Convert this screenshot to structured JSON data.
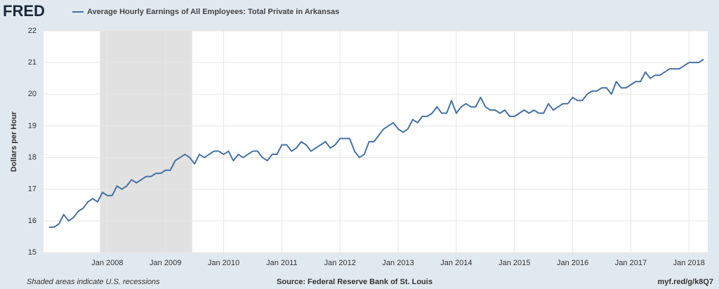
{
  "chart_data": {
    "type": "line",
    "logo": "FRED",
    "title": "Average Hourly Earnings of All Employees: Total Private in Arkansas",
    "y_label": "Dollars per Hour",
    "footer_left": "Shaded areas indicate U.S. recessions",
    "footer_center": "Source: Federal Reserve Bank of St. Louis",
    "footer_right": "myf.red/g/k8Q7",
    "x": [
      "2007-01",
      "2007-02",
      "2007-03",
      "2007-04",
      "2007-05",
      "2007-06",
      "2007-07",
      "2007-08",
      "2007-09",
      "2007-10",
      "2007-11",
      "2007-12",
      "2008-01",
      "2008-02",
      "2008-03",
      "2008-04",
      "2008-05",
      "2008-06",
      "2008-07",
      "2008-08",
      "2008-09",
      "2008-10",
      "2008-11",
      "2008-12",
      "2009-01",
      "2009-02",
      "2009-03",
      "2009-04",
      "2009-05",
      "2009-06",
      "2009-07",
      "2009-08",
      "2009-09",
      "2009-10",
      "2009-11",
      "2009-12",
      "2010-01",
      "2010-02",
      "2010-03",
      "2010-04",
      "2010-05",
      "2010-06",
      "2010-07",
      "2010-08",
      "2010-09",
      "2010-10",
      "2010-11",
      "2010-12",
      "2011-01",
      "2011-02",
      "2011-03",
      "2011-04",
      "2011-05",
      "2011-06",
      "2011-07",
      "2011-08",
      "2011-09",
      "2011-10",
      "2011-11",
      "2011-12",
      "2012-01",
      "2012-02",
      "2012-03",
      "2012-04",
      "2012-05",
      "2012-06",
      "2012-07",
      "2012-08",
      "2012-09",
      "2012-10",
      "2012-11",
      "2012-12",
      "2013-01",
      "2013-02",
      "2013-03",
      "2013-04",
      "2013-05",
      "2013-06",
      "2013-07",
      "2013-08",
      "2013-09",
      "2013-10",
      "2013-11",
      "2013-12",
      "2014-01",
      "2014-02",
      "2014-03",
      "2014-04",
      "2014-05",
      "2014-06",
      "2014-07",
      "2014-08",
      "2014-09",
      "2014-10",
      "2014-11",
      "2014-12",
      "2015-01",
      "2015-02",
      "2015-03",
      "2015-04",
      "2015-05",
      "2015-06",
      "2015-07",
      "2015-08",
      "2015-09",
      "2015-10",
      "2015-11",
      "2015-12",
      "2016-01",
      "2016-02",
      "2016-03",
      "2016-04",
      "2016-05",
      "2016-06",
      "2016-07",
      "2016-08",
      "2016-09",
      "2016-10",
      "2016-11",
      "2016-12",
      "2017-01",
      "2017-02",
      "2017-03",
      "2017-04",
      "2017-05",
      "2017-06",
      "2017-07",
      "2017-08",
      "2017-09",
      "2017-10",
      "2017-11",
      "2017-12",
      "2018-01",
      "2018-02",
      "2018-03",
      "2018-04"
    ],
    "series": [
      {
        "name": "Average Hourly Earnings of All Employees: Total Private in Arkansas",
        "color": "#4572a7",
        "values": [
          15.8,
          15.8,
          15.9,
          16.2,
          16.0,
          16.1,
          16.3,
          16.4,
          16.6,
          16.7,
          16.6,
          16.9,
          16.8,
          16.8,
          17.1,
          17.0,
          17.1,
          17.3,
          17.2,
          17.3,
          17.4,
          17.4,
          17.5,
          17.5,
          17.6,
          17.6,
          17.9,
          18.0,
          18.1,
          18.0,
          17.8,
          18.1,
          18.0,
          18.1,
          18.2,
          18.2,
          18.1,
          18.2,
          17.9,
          18.1,
          18.0,
          18.1,
          18.2,
          18.2,
          18.0,
          17.9,
          18.1,
          18.1,
          18.4,
          18.4,
          18.2,
          18.3,
          18.5,
          18.4,
          18.2,
          18.3,
          18.4,
          18.5,
          18.3,
          18.4,
          18.6,
          18.6,
          18.6,
          18.2,
          18.0,
          18.1,
          18.5,
          18.5,
          18.7,
          18.9,
          19.0,
          19.1,
          18.9,
          18.8,
          18.9,
          19.2,
          19.1,
          19.3,
          19.3,
          19.4,
          19.6,
          19.4,
          19.4,
          19.8,
          19.4,
          19.6,
          19.7,
          19.6,
          19.6,
          19.9,
          19.6,
          19.5,
          19.5,
          19.4,
          19.5,
          19.3,
          19.3,
          19.4,
          19.5,
          19.4,
          19.5,
          19.4,
          19.4,
          19.7,
          19.5,
          19.6,
          19.7,
          19.7,
          19.9,
          19.8,
          19.8,
          20.0,
          20.1,
          20.1,
          20.2,
          20.2,
          20.0,
          20.4,
          20.2,
          20.2,
          20.3,
          20.4,
          20.4,
          20.7,
          20.5,
          20.6,
          20.6,
          20.7,
          20.8,
          20.8,
          20.8,
          20.9,
          21.0,
          21.0,
          21.0,
          21.1
        ]
      }
    ],
    "xlim": [
      "2007-01",
      "2018-04"
    ],
    "xticks": [
      {
        "value": "2008-01",
        "label": "Jan 2008"
      },
      {
        "value": "2009-01",
        "label": "Jan 2009"
      },
      {
        "value": "2010-01",
        "label": "Jan 2010"
      },
      {
        "value": "2011-01",
        "label": "Jan 2011"
      },
      {
        "value": "2012-01",
        "label": "Jan 2012"
      },
      {
        "value": "2013-01",
        "label": "Jan 2013"
      },
      {
        "value": "2014-01",
        "label": "Jan 2014"
      },
      {
        "value": "2015-01",
        "label": "Jan 2015"
      },
      {
        "value": "2016-01",
        "label": "Jan 2016"
      },
      {
        "value": "2017-01",
        "label": "Jan 2017"
      },
      {
        "value": "2018-01",
        "label": "Jan 2018"
      }
    ],
    "ylim": [
      15,
      22
    ],
    "yticks": [
      15,
      16,
      17,
      18,
      19,
      20,
      21,
      22
    ],
    "recessions": [
      {
        "start": "2007-12",
        "end": "2009-06"
      }
    ],
    "grid": true
  }
}
